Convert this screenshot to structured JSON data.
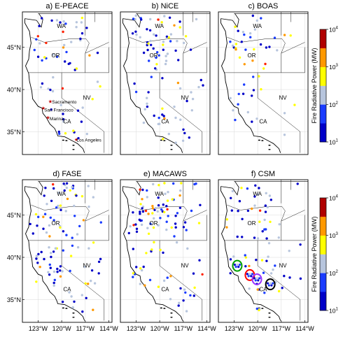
{
  "figure": {
    "panels": [
      {
        "id": "a",
        "title": "a) E-PEACE",
        "fire_density": 0.9,
        "seed": 11,
        "city_labels": [
          "Sacramento",
          "San Francisco",
          "Marina",
          "Los Angeles"
        ]
      },
      {
        "id": "b",
        "title": "b) NiCE",
        "fire_density": 1.3,
        "seed": 23,
        "city_labels": []
      },
      {
        "id": "c",
        "title": "c) BOAS",
        "fire_density": 0.7,
        "seed": 37,
        "city_labels": []
      },
      {
        "id": "d",
        "title": "d) FASE",
        "fire_density": 1.5,
        "seed": 41,
        "city_labels": []
      },
      {
        "id": "e",
        "title": "e) MACAWS",
        "fire_density": 1.6,
        "seed": 53,
        "city_labels": []
      },
      {
        "id": "f",
        "title": "f) CSM",
        "fire_density": 1.0,
        "seed": 67,
        "city_labels": [],
        "flight_tracks": [
          {
            "lon": -122.6,
            "lat": 39.0,
            "color": "#00a000"
          },
          {
            "lon": -121.0,
            "lat": 37.9,
            "color": "#ff0000"
          },
          {
            "lon": -120.1,
            "lat": 37.4,
            "color": "#9b30ff"
          },
          {
            "lon": -118.4,
            "lat": 36.8,
            "color": "#000000"
          }
        ]
      }
    ],
    "state_labels": {
      "WA": "WA",
      "OR": "OR",
      "NV": "NV",
      "CA": "CA"
    },
    "lat_ticks": [
      "35°N",
      "40°N",
      "45°N"
    ],
    "lon_ticks": [
      "123°W",
      "120°W",
      "117°W",
      "114°W"
    ],
    "colorbar": {
      "label": "Fire Radiative Power (MW)",
      "tick_labels": [
        "10",
        "10",
        "10",
        "10"
      ],
      "tick_exponents": [
        "1",
        "2",
        "3",
        "4"
      ],
      "colors": [
        "#0000c8",
        "#1a3cff",
        "#b7c5dd",
        "#ffff00",
        "#ff9900",
        "#ff2200",
        "#b00000"
      ]
    }
  }
}
